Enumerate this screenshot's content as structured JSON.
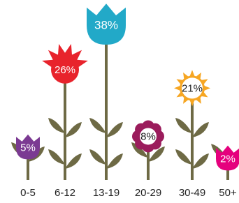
{
  "chart_data": {
    "type": "bar",
    "categories": [
      "0-5",
      "6-12",
      "13-19",
      "20-29",
      "30-49",
      "50+"
    ],
    "values": [
      5,
      26,
      38,
      8,
      21,
      2
    ],
    "value_labels": [
      "5%",
      "26%",
      "38%",
      "8%",
      "21%",
      "2%"
    ],
    "colors": [
      "#7b3a92",
      "#e8232c",
      "#22a9c8",
      "#9b1c5c",
      "#f6a623",
      "#e5007d"
    ],
    "stem_color": "#6e6a45"
  }
}
